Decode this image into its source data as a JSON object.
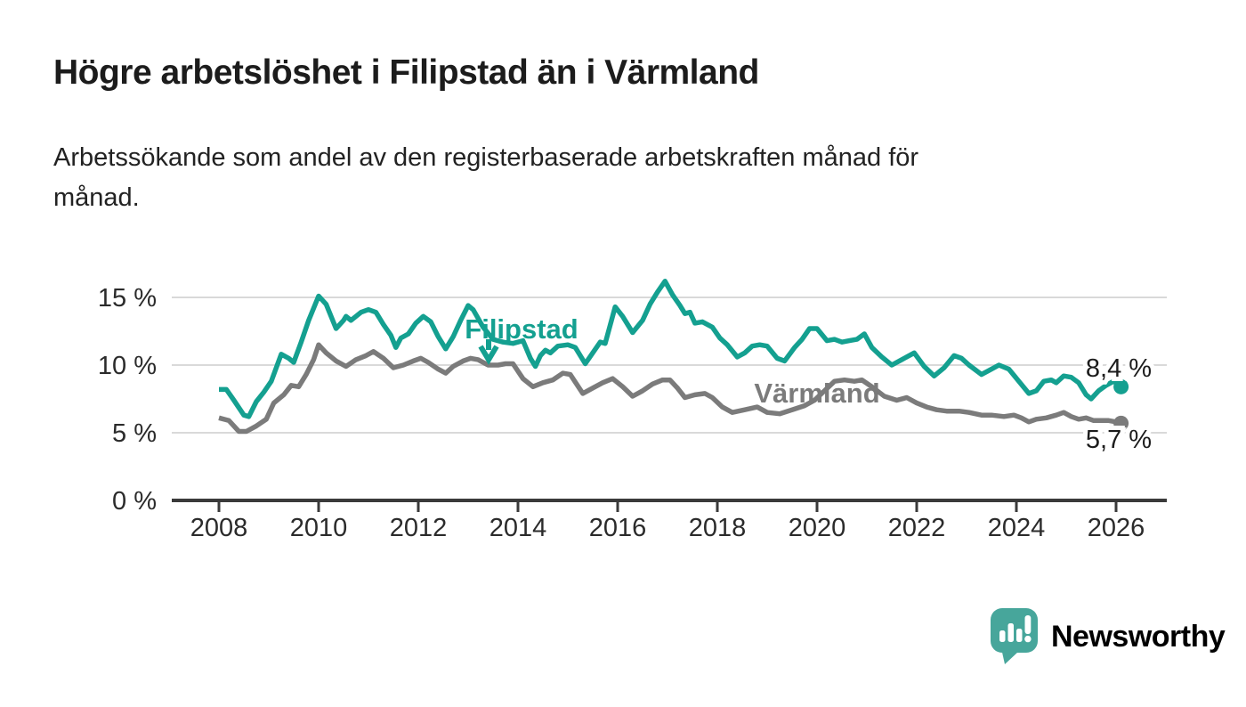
{
  "header": {
    "title": "Högre arbetslöshet i Filipstad än i Värmland",
    "subtitle_line1": "Arbetssökande som andel av den registerbaserade arbetskraften månad för",
    "subtitle_line2": "månad."
  },
  "colors": {
    "filipstad": "#14a090",
    "varmland": "#7b7b7b",
    "grid": "#d9d9d9",
    "axis": "#3a3a3a",
    "tick_text": "#2b2b2b",
    "value_label_text": "#1c1c1c",
    "logo_mark": "#47a69b",
    "logo_text": "#3f9e95",
    "background": "#ffffff"
  },
  "chart_data": {
    "type": "line",
    "title": "Högre arbetslöshet i Filipstad än i Värmland",
    "xlabel": "",
    "ylabel": "Arbetssökande som andel av den registerbaserade arbetskraften (%)",
    "xlim": [
      2007.05,
      2027.0
    ],
    "ylim": [
      0,
      17.2
    ],
    "grid": "horizontal",
    "legend_position": "inline-labels",
    "x_ticks": [
      {
        "value": 2008,
        "label": "2008"
      },
      {
        "value": 2010,
        "label": "2010"
      },
      {
        "value": 2012,
        "label": "2012"
      },
      {
        "value": 2014,
        "label": "2014"
      },
      {
        "value": 2016,
        "label": "2016"
      },
      {
        "value": 2018,
        "label": "2018"
      },
      {
        "value": 2020,
        "label": "2020"
      },
      {
        "value": 2022,
        "label": "2022"
      },
      {
        "value": 2024,
        "label": "2024"
      },
      {
        "value": 2026,
        "label": "2026"
      }
    ],
    "y_ticks": [
      {
        "value": 0,
        "label": "0 %"
      },
      {
        "value": 5,
        "label": "5 %"
      },
      {
        "value": 10,
        "label": "10 %"
      },
      {
        "value": 15,
        "label": "15 %"
      }
    ],
    "series": [
      {
        "name": "Filipstad",
        "color": "#14a090",
        "end_value": 8.4,
        "end_label": "8,4 %",
        "points": [
          [
            2008.0,
            8.2
          ],
          [
            2008.15,
            8.2
          ],
          [
            2008.3,
            7.4
          ],
          [
            2008.5,
            6.3
          ],
          [
            2008.6,
            6.2
          ],
          [
            2008.75,
            7.3
          ],
          [
            2008.9,
            8.0
          ],
          [
            2009.05,
            8.8
          ],
          [
            2009.25,
            10.8
          ],
          [
            2009.4,
            10.5
          ],
          [
            2009.5,
            10.2
          ],
          [
            2009.65,
            11.7
          ],
          [
            2009.8,
            13.3
          ],
          [
            2010.0,
            15.1
          ],
          [
            2010.15,
            14.5
          ],
          [
            2010.35,
            12.7
          ],
          [
            2010.5,
            13.3
          ],
          [
            2010.55,
            13.6
          ],
          [
            2010.65,
            13.3
          ],
          [
            2010.85,
            13.9
          ],
          [
            2011.0,
            14.1
          ],
          [
            2011.15,
            13.9
          ],
          [
            2011.3,
            13.0
          ],
          [
            2011.45,
            12.2
          ],
          [
            2011.55,
            11.3
          ],
          [
            2011.65,
            12.0
          ],
          [
            2011.8,
            12.3
          ],
          [
            2011.95,
            13.1
          ],
          [
            2012.1,
            13.6
          ],
          [
            2012.25,
            13.2
          ],
          [
            2012.4,
            12.1
          ],
          [
            2012.55,
            11.2
          ],
          [
            2012.7,
            12.1
          ],
          [
            2012.85,
            13.3
          ],
          [
            2013.0,
            14.4
          ],
          [
            2013.1,
            14.1
          ],
          [
            2013.3,
            12.8
          ],
          [
            2013.5,
            11.9
          ],
          [
            2013.7,
            11.7
          ],
          [
            2013.9,
            11.6
          ],
          [
            2014.1,
            11.8
          ],
          [
            2014.25,
            10.5
          ],
          [
            2014.35,
            9.9
          ],
          [
            2014.45,
            10.7
          ],
          [
            2014.55,
            11.1
          ],
          [
            2014.65,
            10.9
          ],
          [
            2014.8,
            11.4
          ],
          [
            2015.0,
            11.5
          ],
          [
            2015.15,
            11.3
          ],
          [
            2015.35,
            10.1
          ],
          [
            2015.5,
            10.9
          ],
          [
            2015.65,
            11.7
          ],
          [
            2015.75,
            11.6
          ],
          [
            2015.95,
            14.3
          ],
          [
            2016.1,
            13.6
          ],
          [
            2016.3,
            12.4
          ],
          [
            2016.5,
            13.3
          ],
          [
            2016.65,
            14.5
          ],
          [
            2016.8,
            15.4
          ],
          [
            2016.95,
            16.2
          ],
          [
            2017.1,
            15.2
          ],
          [
            2017.25,
            14.4
          ],
          [
            2017.35,
            13.8
          ],
          [
            2017.45,
            13.9
          ],
          [
            2017.55,
            13.1
          ],
          [
            2017.7,
            13.2
          ],
          [
            2017.9,
            12.8
          ],
          [
            2018.05,
            12.0
          ],
          [
            2018.2,
            11.5
          ],
          [
            2018.4,
            10.6
          ],
          [
            2018.55,
            10.9
          ],
          [
            2018.7,
            11.4
          ],
          [
            2018.85,
            11.5
          ],
          [
            2019.0,
            11.4
          ],
          [
            2019.2,
            10.5
          ],
          [
            2019.35,
            10.3
          ],
          [
            2019.55,
            11.3
          ],
          [
            2019.7,
            11.9
          ],
          [
            2019.85,
            12.7
          ],
          [
            2020.0,
            12.7
          ],
          [
            2020.2,
            11.8
          ],
          [
            2020.35,
            11.9
          ],
          [
            2020.5,
            11.7
          ],
          [
            2020.65,
            11.8
          ],
          [
            2020.8,
            11.9
          ],
          [
            2020.95,
            12.3
          ],
          [
            2021.1,
            11.3
          ],
          [
            2021.3,
            10.6
          ],
          [
            2021.5,
            10.0
          ],
          [
            2021.7,
            10.4
          ],
          [
            2021.95,
            10.9
          ],
          [
            2022.15,
            9.9
          ],
          [
            2022.35,
            9.2
          ],
          [
            2022.55,
            9.8
          ],
          [
            2022.75,
            10.7
          ],
          [
            2022.9,
            10.5
          ],
          [
            2023.05,
            10.0
          ],
          [
            2023.3,
            9.3
          ],
          [
            2023.45,
            9.6
          ],
          [
            2023.65,
            10.0
          ],
          [
            2023.85,
            9.7
          ],
          [
            2024.05,
            8.8
          ],
          [
            2024.25,
            7.9
          ],
          [
            2024.4,
            8.1
          ],
          [
            2024.55,
            8.8
          ],
          [
            2024.7,
            8.9
          ],
          [
            2024.8,
            8.7
          ],
          [
            2024.95,
            9.2
          ],
          [
            2025.1,
            9.1
          ],
          [
            2025.25,
            8.7
          ],
          [
            2025.4,
            7.8
          ],
          [
            2025.5,
            7.5
          ],
          [
            2025.65,
            8.1
          ],
          [
            2025.8,
            8.5
          ],
          [
            2025.95,
            8.8
          ],
          [
            2026.1,
            8.4
          ]
        ]
      },
      {
        "name": "Värmland",
        "color": "#7b7b7b",
        "end_value": 5.7,
        "end_label": "5,7 %",
        "points": [
          [
            2008.0,
            6.1
          ],
          [
            2008.2,
            5.9
          ],
          [
            2008.4,
            5.1
          ],
          [
            2008.55,
            5.1
          ],
          [
            2008.75,
            5.5
          ],
          [
            2008.95,
            6.0
          ],
          [
            2009.1,
            7.2
          ],
          [
            2009.3,
            7.8
          ],
          [
            2009.45,
            8.5
          ],
          [
            2009.6,
            8.4
          ],
          [
            2009.75,
            9.3
          ],
          [
            2009.9,
            10.4
          ],
          [
            2010.0,
            11.5
          ],
          [
            2010.15,
            10.9
          ],
          [
            2010.35,
            10.3
          ],
          [
            2010.55,
            9.9
          ],
          [
            2010.75,
            10.4
          ],
          [
            2010.95,
            10.7
          ],
          [
            2011.1,
            11.0
          ],
          [
            2011.3,
            10.5
          ],
          [
            2011.5,
            9.8
          ],
          [
            2011.7,
            10.0
          ],
          [
            2011.9,
            10.3
          ],
          [
            2012.05,
            10.5
          ],
          [
            2012.2,
            10.2
          ],
          [
            2012.4,
            9.7
          ],
          [
            2012.55,
            9.4
          ],
          [
            2012.7,
            9.9
          ],
          [
            2012.9,
            10.3
          ],
          [
            2013.05,
            10.5
          ],
          [
            2013.2,
            10.4
          ],
          [
            2013.4,
            10.0
          ],
          [
            2013.6,
            10.0
          ],
          [
            2013.75,
            10.1
          ],
          [
            2013.9,
            10.1
          ],
          [
            2014.1,
            9.0
          ],
          [
            2014.3,
            8.4
          ],
          [
            2014.5,
            8.7
          ],
          [
            2014.7,
            8.9
          ],
          [
            2014.9,
            9.4
          ],
          [
            2015.05,
            9.3
          ],
          [
            2015.3,
            7.9
          ],
          [
            2015.5,
            8.3
          ],
          [
            2015.7,
            8.7
          ],
          [
            2015.9,
            9.0
          ],
          [
            2016.1,
            8.4
          ],
          [
            2016.3,
            7.7
          ],
          [
            2016.5,
            8.1
          ],
          [
            2016.7,
            8.6
          ],
          [
            2016.9,
            8.9
          ],
          [
            2017.05,
            8.9
          ],
          [
            2017.2,
            8.3
          ],
          [
            2017.35,
            7.6
          ],
          [
            2017.55,
            7.8
          ],
          [
            2017.75,
            7.9
          ],
          [
            2017.9,
            7.6
          ],
          [
            2018.1,
            6.9
          ],
          [
            2018.3,
            6.5
          ],
          [
            2018.55,
            6.7
          ],
          [
            2018.8,
            6.9
          ],
          [
            2019.0,
            6.5
          ],
          [
            2019.25,
            6.4
          ],
          [
            2019.5,
            6.7
          ],
          [
            2019.75,
            7.0
          ],
          [
            2019.95,
            7.4
          ],
          [
            2020.15,
            8.1
          ],
          [
            2020.35,
            8.8
          ],
          [
            2020.55,
            8.9
          ],
          [
            2020.75,
            8.8
          ],
          [
            2020.9,
            8.9
          ],
          [
            2021.1,
            8.4
          ],
          [
            2021.35,
            7.7
          ],
          [
            2021.6,
            7.4
          ],
          [
            2021.8,
            7.6
          ],
          [
            2022.0,
            7.2
          ],
          [
            2022.2,
            6.9
          ],
          [
            2022.4,
            6.7
          ],
          [
            2022.6,
            6.6
          ],
          [
            2022.85,
            6.6
          ],
          [
            2023.05,
            6.5
          ],
          [
            2023.3,
            6.3
          ],
          [
            2023.5,
            6.3
          ],
          [
            2023.75,
            6.2
          ],
          [
            2023.95,
            6.3
          ],
          [
            2024.1,
            6.1
          ],
          [
            2024.25,
            5.8
          ],
          [
            2024.4,
            6.0
          ],
          [
            2024.6,
            6.1
          ],
          [
            2024.8,
            6.3
          ],
          [
            2024.95,
            6.5
          ],
          [
            2025.1,
            6.2
          ],
          [
            2025.25,
            6.0
          ],
          [
            2025.4,
            6.1
          ],
          [
            2025.55,
            5.9
          ],
          [
            2025.7,
            5.9
          ],
          [
            2025.85,
            5.9
          ],
          [
            2026.0,
            5.8
          ],
          [
            2026.1,
            5.7
          ]
        ]
      }
    ],
    "annotations": [
      {
        "type": "series-label",
        "series": "Filipstad",
        "text": "Filipstad",
        "anchor_year": 2014.05,
        "with_arrow": true
      },
      {
        "type": "series-label",
        "series": "Värmland",
        "text": "Värmland",
        "anchor_year": 2020.0,
        "with_arrow": false
      }
    ]
  },
  "branding": {
    "logo_text": "Newsworthy",
    "logo_icon": "speech-bubble-bar-chart-exclamation"
  }
}
